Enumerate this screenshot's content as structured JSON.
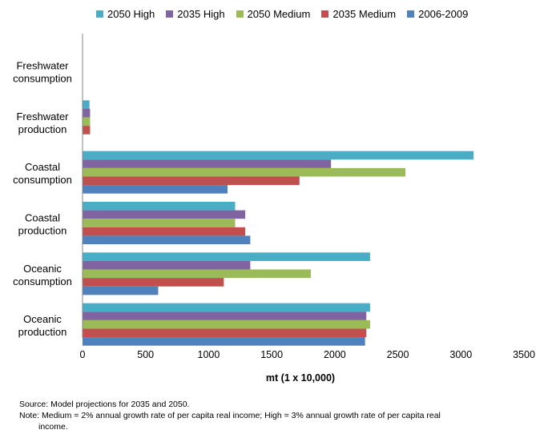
{
  "chart_data": {
    "type": "bar",
    "orientation": "horizontal",
    "title": "",
    "xlabel": "mt (1 x 10,000)",
    "ylabel": "",
    "xlim": [
      0,
      3500
    ],
    "xticks": [
      0,
      500,
      1000,
      1500,
      2000,
      2500,
      3000,
      3500
    ],
    "grid": false,
    "legend_position": "top",
    "categories": [
      [
        "Freshwater",
        "consumption"
      ],
      [
        "Freshwater",
        "production"
      ],
      [
        "Coastal",
        "consumption"
      ],
      [
        "Coastal",
        "production"
      ],
      [
        "Oceanic",
        "consumption"
      ],
      [
        "Oceanic",
        "production"
      ]
    ],
    "series": [
      {
        "name": "2050 High",
        "color": "#4BACC6",
        "values": [
          0,
          55,
          3100,
          1210,
          2280,
          2280
        ]
      },
      {
        "name": "2035 High",
        "color": "#8064A2",
        "values": [
          0,
          60,
          1970,
          1290,
          1330,
          2250
        ]
      },
      {
        "name": "2050 Medium",
        "color": "#9BBB59",
        "values": [
          0,
          60,
          2560,
          1210,
          1810,
          2280
        ]
      },
      {
        "name": "2035 Medium",
        "color": "#C0504D",
        "values": [
          0,
          60,
          1720,
          1290,
          1120,
          2250
        ]
      },
      {
        "name": "2006-2009",
        "color": "#4F81BD",
        "values": [
          0,
          0,
          1150,
          1330,
          600,
          2240
        ]
      }
    ]
  },
  "notes": {
    "source": "Source: Model projections for 2035 and 2050.",
    "note_line1": "Note:  Medium = 2% annual growth rate of per capita real income; High = 3% annual growth rate of per capita real",
    "note_line2": "income."
  }
}
